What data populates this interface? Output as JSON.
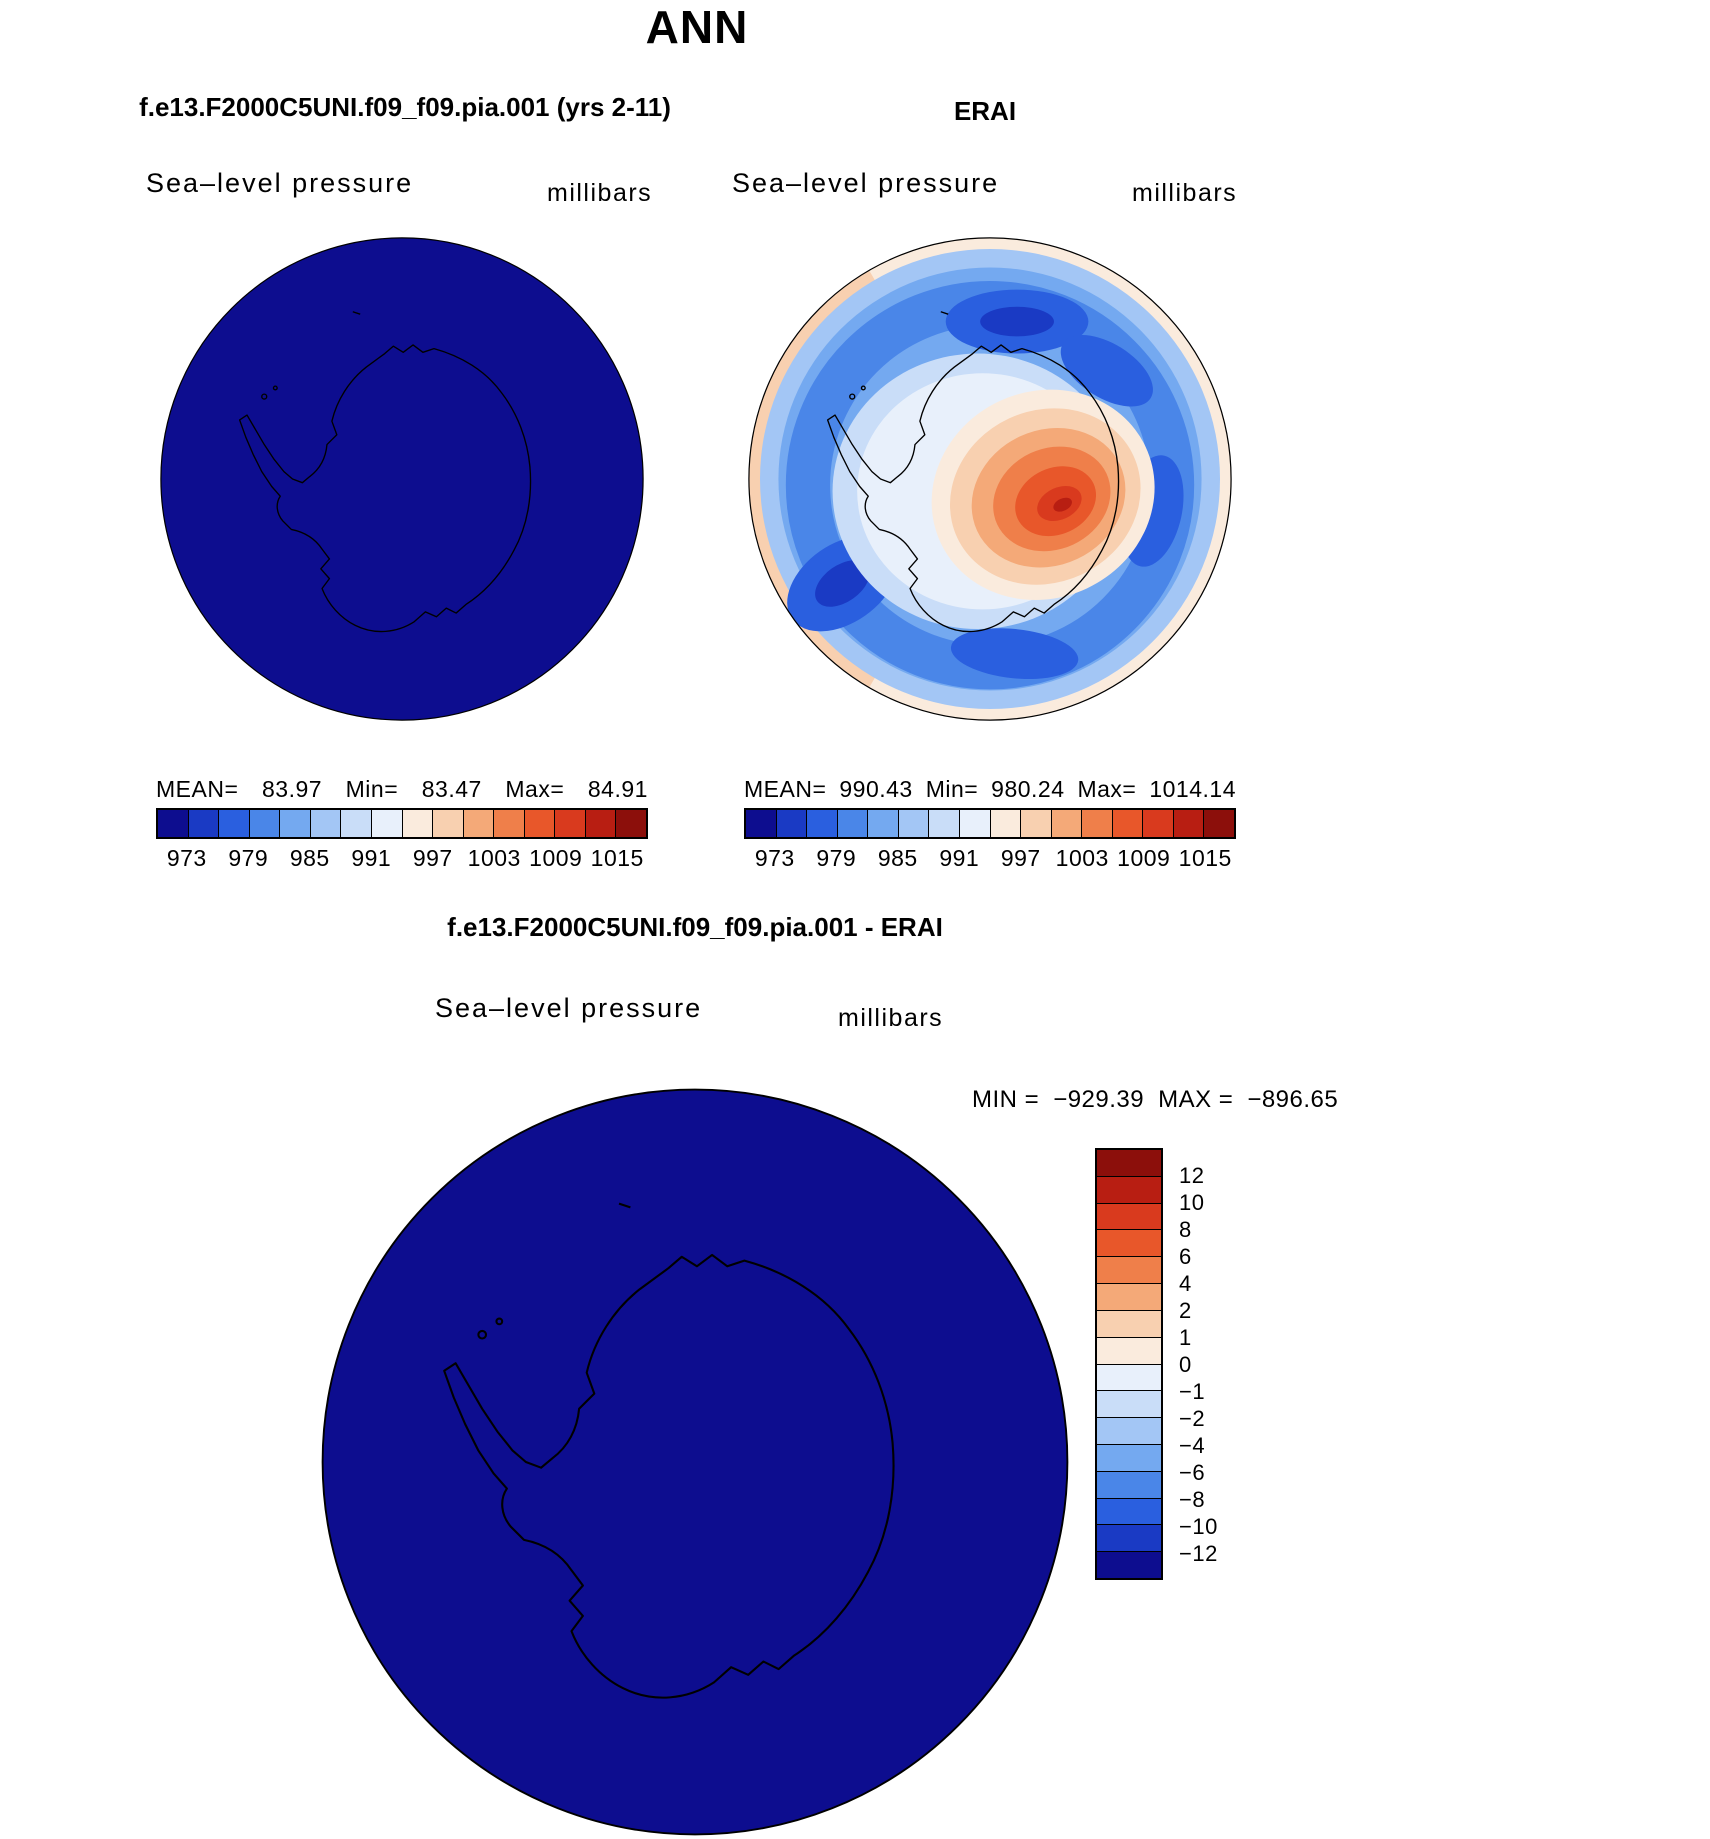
{
  "page": {
    "title": "ANN"
  },
  "palette": {
    "map_fill_navy": "#0D0D8F",
    "coastline": "#000000",
    "diverging16": [
      "#0D0D8F",
      "#1A3AC4",
      "#2A5FDF",
      "#4A86E8",
      "#74A9F0",
      "#A3C6F5",
      "#C9DDF8",
      "#E8F0FB",
      "#FAEBDD",
      "#F8D0B0",
      "#F4A978",
      "#EF7F4A",
      "#E8572A",
      "#D93A1E",
      "#B81E12",
      "#8C0F0B"
    ],
    "diverging16_top_to_bottom": [
      "#8C0F0B",
      "#B81E12",
      "#D93A1E",
      "#E8572A",
      "#EF7F4A",
      "#F4A978",
      "#F8D0B0",
      "#FAEBDD",
      "#E8F0FB",
      "#C9DDF8",
      "#A3C6F5",
      "#74A9F0",
      "#4A86E8",
      "#2A5FDF",
      "#1A3AC4",
      "#0D0D8F"
    ]
  },
  "panels": {
    "model": {
      "title": "f.e13.F2000C5UNI.f09_f09.pia.001 (yrs 2-11)",
      "field_label": "Sea–level pressure",
      "units_label": "millibars",
      "stats": {
        "mean_label": "MEAN=",
        "mean": "83.97",
        "min_label": "Min=",
        "min": "83.47",
        "max_label": "Max=",
        "max": "84.91"
      },
      "colorbar_ticks": [
        "973",
        "979",
        "985",
        "991",
        "997",
        "1003",
        "1009",
        "1015"
      ]
    },
    "obs": {
      "title": "ERAI",
      "field_label": "Sea–level pressure",
      "units_label": "millibars",
      "stats": {
        "mean_label": "MEAN=",
        "mean": "990.43",
        "min_label": "Min=",
        "min": "980.24",
        "max_label": "Max=",
        "max": "1014.14"
      },
      "colorbar_ticks": [
        "973",
        "979",
        "985",
        "991",
        "997",
        "1003",
        "1009",
        "1015"
      ]
    },
    "diff": {
      "title": "f.e13.F2000C5UNI.f09_f09.pia.001 - ERAI",
      "field_label": "Sea–level pressure",
      "units_label": "millibars",
      "range": {
        "min_label": "MIN =",
        "min": "−929.39",
        "max_label": "MAX =",
        "max": "−896.65"
      },
      "colorbar_ticks": [
        "12",
        "10",
        "8",
        "6",
        "4",
        "2",
        "1",
        "0",
        "−1",
        "−2",
        "−4",
        "−6",
        "−8",
        "−10",
        "−12"
      ]
    }
  },
  "chart_data": [
    {
      "type": "heatmap",
      "subtype": "south-polar-stereographic-filled-contour",
      "title": "f.e13.F2000C5UNI.f09_f09.pia.001 (yrs 2-11)",
      "season": "ANN",
      "variable": "Sea-level pressure",
      "units": "millibars",
      "stats": {
        "mean": 83.97,
        "min": 83.47,
        "max": 84.91
      },
      "contour_levels": [
        973,
        976,
        979,
        982,
        985,
        988,
        991,
        994,
        997,
        1000,
        1003,
        1006,
        1009,
        1012,
        1015
      ],
      "colorbar": {
        "orientation": "horizontal",
        "n_cells": 16,
        "tick_labels": [
          973,
          979,
          985,
          991,
          997,
          1003,
          1009,
          1015
        ]
      },
      "rendering_note": "Entire field lies below the lowest contour level (973 mb), so the whole polar disk renders uniform darkest blue with only the black Antarctic coastline visible."
    },
    {
      "type": "heatmap",
      "subtype": "south-polar-stereographic-filled-contour",
      "title": "ERAI",
      "season": "ANN",
      "variable": "Sea-level pressure",
      "units": "millibars",
      "stats": {
        "mean": 990.43,
        "min": 980.24,
        "max": 1014.14
      },
      "contour_levels": [
        973,
        976,
        979,
        982,
        985,
        988,
        991,
        994,
        997,
        1000,
        1003,
        1006,
        1009,
        1012,
        1015
      ],
      "colorbar": {
        "orientation": "horizontal",
        "n_cells": 16,
        "tick_labels": [
          973,
          979,
          985,
          991,
          997,
          1003,
          1009,
          1015
        ]
      },
      "rendering_note": "Circumpolar low-pressure trough (~980–988 mb, blues) rings Antarctica with deepest pockets north of the coast; high pressure (~1000–1014 mb, oranges to dark red) over the East Antarctic interior; ~994–1000 mb (pale/cream) at the outer mid-latitude rim, warmest rim values along the left edge."
    },
    {
      "type": "heatmap",
      "subtype": "south-polar-stereographic-filled-contour-difference",
      "title": "f.e13.F2000C5UNI.f09_f09.pia.001 - ERAI",
      "season": "ANN",
      "variable": "Sea-level pressure",
      "units": "millibars",
      "stats": {
        "min": -929.39,
        "max": -896.65
      },
      "contour_levels": [
        -12,
        -10,
        -8,
        -6,
        -4,
        -2,
        -1,
        0,
        1,
        2,
        4,
        6,
        8,
        10,
        12
      ],
      "colorbar": {
        "orientation": "vertical",
        "n_cells": 16,
        "tick_labels": [
          12,
          10,
          8,
          6,
          4,
          2,
          1,
          0,
          -1,
          -2,
          -4,
          -6,
          -8,
          -10,
          -12
        ]
      },
      "rendering_note": "Entire difference field is far below −12 mb, so the whole polar disk renders uniform darkest blue."
    }
  ]
}
